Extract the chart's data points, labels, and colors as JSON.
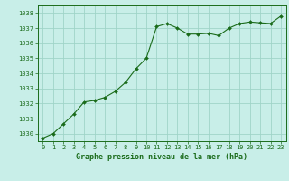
{
  "x": [
    0,
    1,
    2,
    3,
    4,
    5,
    6,
    7,
    8,
    9,
    10,
    11,
    12,
    13,
    14,
    15,
    16,
    17,
    18,
    19,
    20,
    21,
    22,
    23
  ],
  "y": [
    1029.7,
    1030.0,
    1030.65,
    1031.3,
    1032.1,
    1032.2,
    1032.4,
    1032.8,
    1033.4,
    1034.3,
    1035.0,
    1037.1,
    1037.3,
    1037.0,
    1036.6,
    1036.6,
    1036.65,
    1036.5,
    1037.0,
    1037.3,
    1037.4,
    1037.35,
    1037.3,
    1037.8
  ],
  "line_color": "#1a6b1a",
  "marker_color": "#1a6b1a",
  "bg_color": "#c8eee8",
  "grid_color": "#a0d4c8",
  "xlabel": "Graphe pression niveau de la mer (hPa)",
  "xlabel_color": "#1a6b1a",
  "tick_color": "#1a6b1a",
  "ylim": [
    1029.5,
    1038.5
  ],
  "yticks": [
    1030,
    1031,
    1032,
    1033,
    1034,
    1035,
    1036,
    1037,
    1038
  ],
  "xticks": [
    0,
    1,
    2,
    3,
    4,
    5,
    6,
    7,
    8,
    9,
    10,
    11,
    12,
    13,
    14,
    15,
    16,
    17,
    18,
    19,
    20,
    21,
    22,
    23
  ],
  "tick_fontsize": 5.0,
  "xlabel_fontsize": 6.0,
  "spine_color": "#1a6b1a"
}
